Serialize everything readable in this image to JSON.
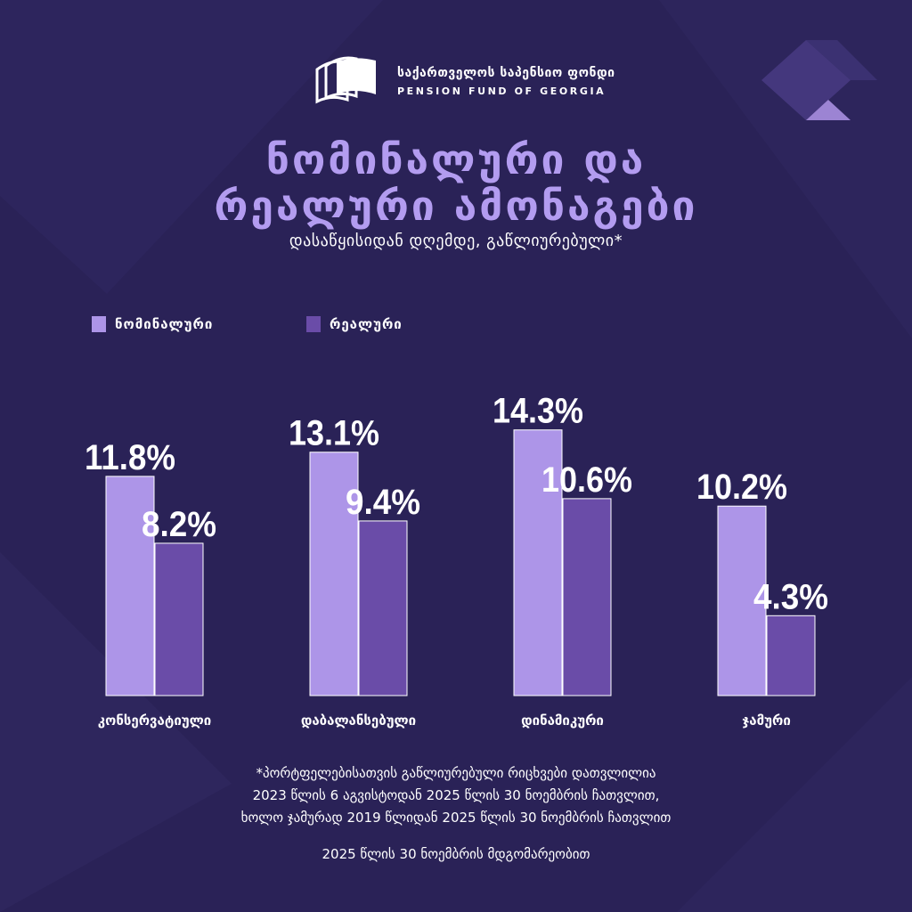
{
  "brand": {
    "name_ka": "საქართველოს საპენსიო ფონდი",
    "name_en": "PENSION FUND OF GEORGIA"
  },
  "heading": {
    "line1": "ნომინალური და",
    "line2": "რეალური ამონაგები",
    "subtitle": "დასაწყისიდან დღემდე, გაწლიურებული*"
  },
  "colors": {
    "background": "#2a2257",
    "nominal": "#ad95e8",
    "real": "#6a4ca8",
    "title": "#b39cf0"
  },
  "chart_data": {
    "type": "bar",
    "categories": [
      "კონსერვატიული",
      "დაბალანსებული",
      "დინამიკური",
      "ჯამური"
    ],
    "series": [
      {
        "name": "ნომინალური",
        "values": [
          11.8,
          13.1,
          14.3,
          10.2
        ],
        "labels": [
          "11.8%",
          "13.1%",
          "14.3%",
          "10.2%"
        ]
      },
      {
        "name": "რეალური",
        "values": [
          8.2,
          9.4,
          10.6,
          4.3
        ],
        "labels": [
          "8.2%",
          "9.4%",
          "10.6%",
          "4.3%"
        ]
      }
    ],
    "ylim": [
      0,
      16.3
    ],
    "grid": false,
    "legend": "top-left"
  },
  "footnote": {
    "line1": "*პორტფელებისათვის გაწლიურებული რიცხვები დათვლილია",
    "line2": "2023 წლის 6 აგვისტოდან 2025 წლის 30 ნოემბრის ჩათვლით,",
    "line3": "ხოლო ჯამურად 2019 წლიდან 2025 წლის 30 ნოემბრის ჩათვლით"
  },
  "as_of": "2025 წლის 30 ნოემბრის მდგომარეობით"
}
